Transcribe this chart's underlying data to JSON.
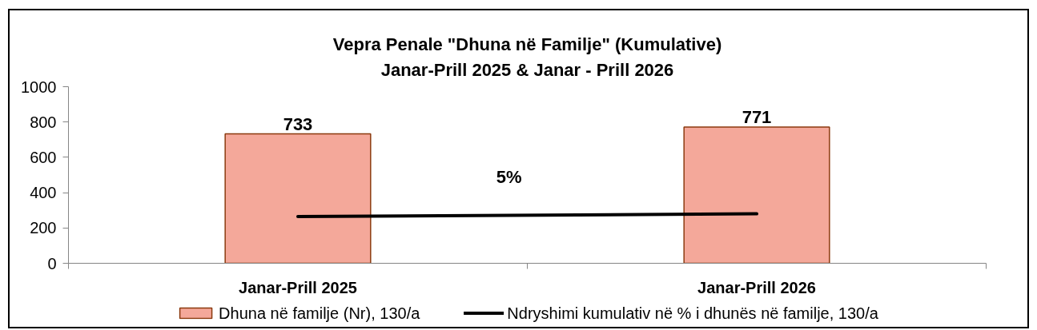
{
  "chart_data": {
    "type": "bar",
    "title": "Vepra Penale \"Dhuna në Familje\" (Kumulative)",
    "subtitle": "Janar-Prill 2025 & Janar - Prill 2026",
    "categories": [
      "Janar-Prill 2025",
      "Janar-Prill 2026"
    ],
    "series": [
      {
        "name": "Dhuna në familje (Nr), 130/a",
        "color": "#f4a89a",
        "values": [
          733,
          771
        ],
        "value_labels": [
          "733",
          "771"
        ]
      },
      {
        "type": "line",
        "name": "Ndryshimi kumulativ në % i dhunës në familje, 130/a",
        "color": "#000000",
        "values": [
          265,
          280
        ]
      }
    ],
    "ylim": [
      0,
      1000
    ],
    "yticks": [
      0,
      200,
      400,
      600,
      800,
      1000
    ],
    "annotations": [
      "5%"
    ],
    "legend": "bottom"
  }
}
